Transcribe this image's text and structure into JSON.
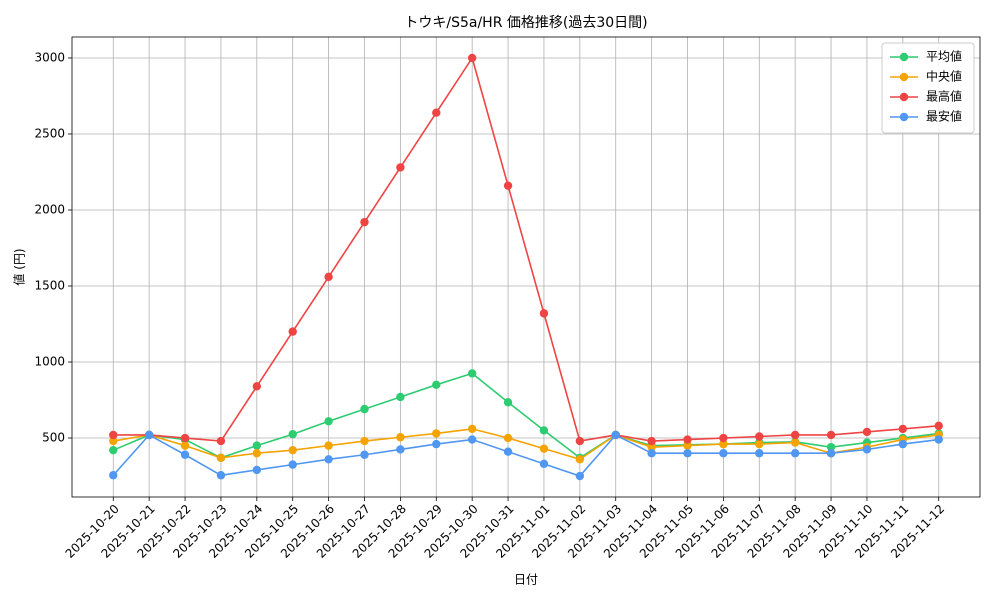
{
  "chart_data": {
    "type": "line",
    "title": "トウキ/S5a/HR 価格推移(過去30日間)",
    "x_label": "日付",
    "y_label": "値 (円)",
    "categories": [
      "2025-10-20",
      "2025-10-21",
      "2025-10-22",
      "2025-10-23",
      "2025-10-24",
      "2025-10-25",
      "2025-10-26",
      "2025-10-27",
      "2025-10-28",
      "2025-10-29",
      "2025-10-30",
      "2025-10-31",
      "2025-11-01",
      "2025-11-02",
      "2025-11-03",
      "2025-11-04",
      "2025-11-05",
      "2025-11-06",
      "2025-11-07",
      "2025-11-08",
      "2025-11-09",
      "2025-11-10",
      "2025-11-11",
      "2025-11-12"
    ],
    "series": [
      {
        "name": "平均値",
        "color": "#2ecc71",
        "values": [
          420,
          520,
          490,
          370,
          450,
          525,
          610,
          690,
          770,
          850,
          925,
          735,
          550,
          370,
          520,
          450,
          455,
          460,
          470,
          475,
          440,
          470,
          500,
          530
        ]
      },
      {
        "name": "中央値",
        "color": "#f5a300",
        "values": [
          480,
          520,
          450,
          370,
          400,
          420,
          450,
          480,
          505,
          530,
          560,
          500,
          430,
          360,
          520,
          440,
          450,
          460,
          460,
          470,
          400,
          440,
          490,
          520
        ]
      },
      {
        "name": "最高値",
        "color": "#ef4444",
        "values": [
          520,
          520,
          500,
          480,
          840,
          1200,
          1560,
          1920,
          2280,
          2640,
          3000,
          2160,
          1320,
          480,
          520,
          480,
          490,
          500,
          510,
          520,
          520,
          540,
          560,
          580
        ]
      },
      {
        "name": "最安値",
        "color": "#4f97f0",
        "values": [
          255,
          520,
          390,
          255,
          290,
          325,
          360,
          390,
          425,
          460,
          490,
          410,
          330,
          250,
          520,
          400,
          400,
          400,
          400,
          400,
          400,
          425,
          460,
          490
        ]
      }
    ],
    "ylim": [
      112,
      3138
    ],
    "yticks": [
      500,
      1000,
      1500,
      2000,
      2500,
      3000
    ],
    "grid": true,
    "legend": "upper right",
    "markers": true
  }
}
